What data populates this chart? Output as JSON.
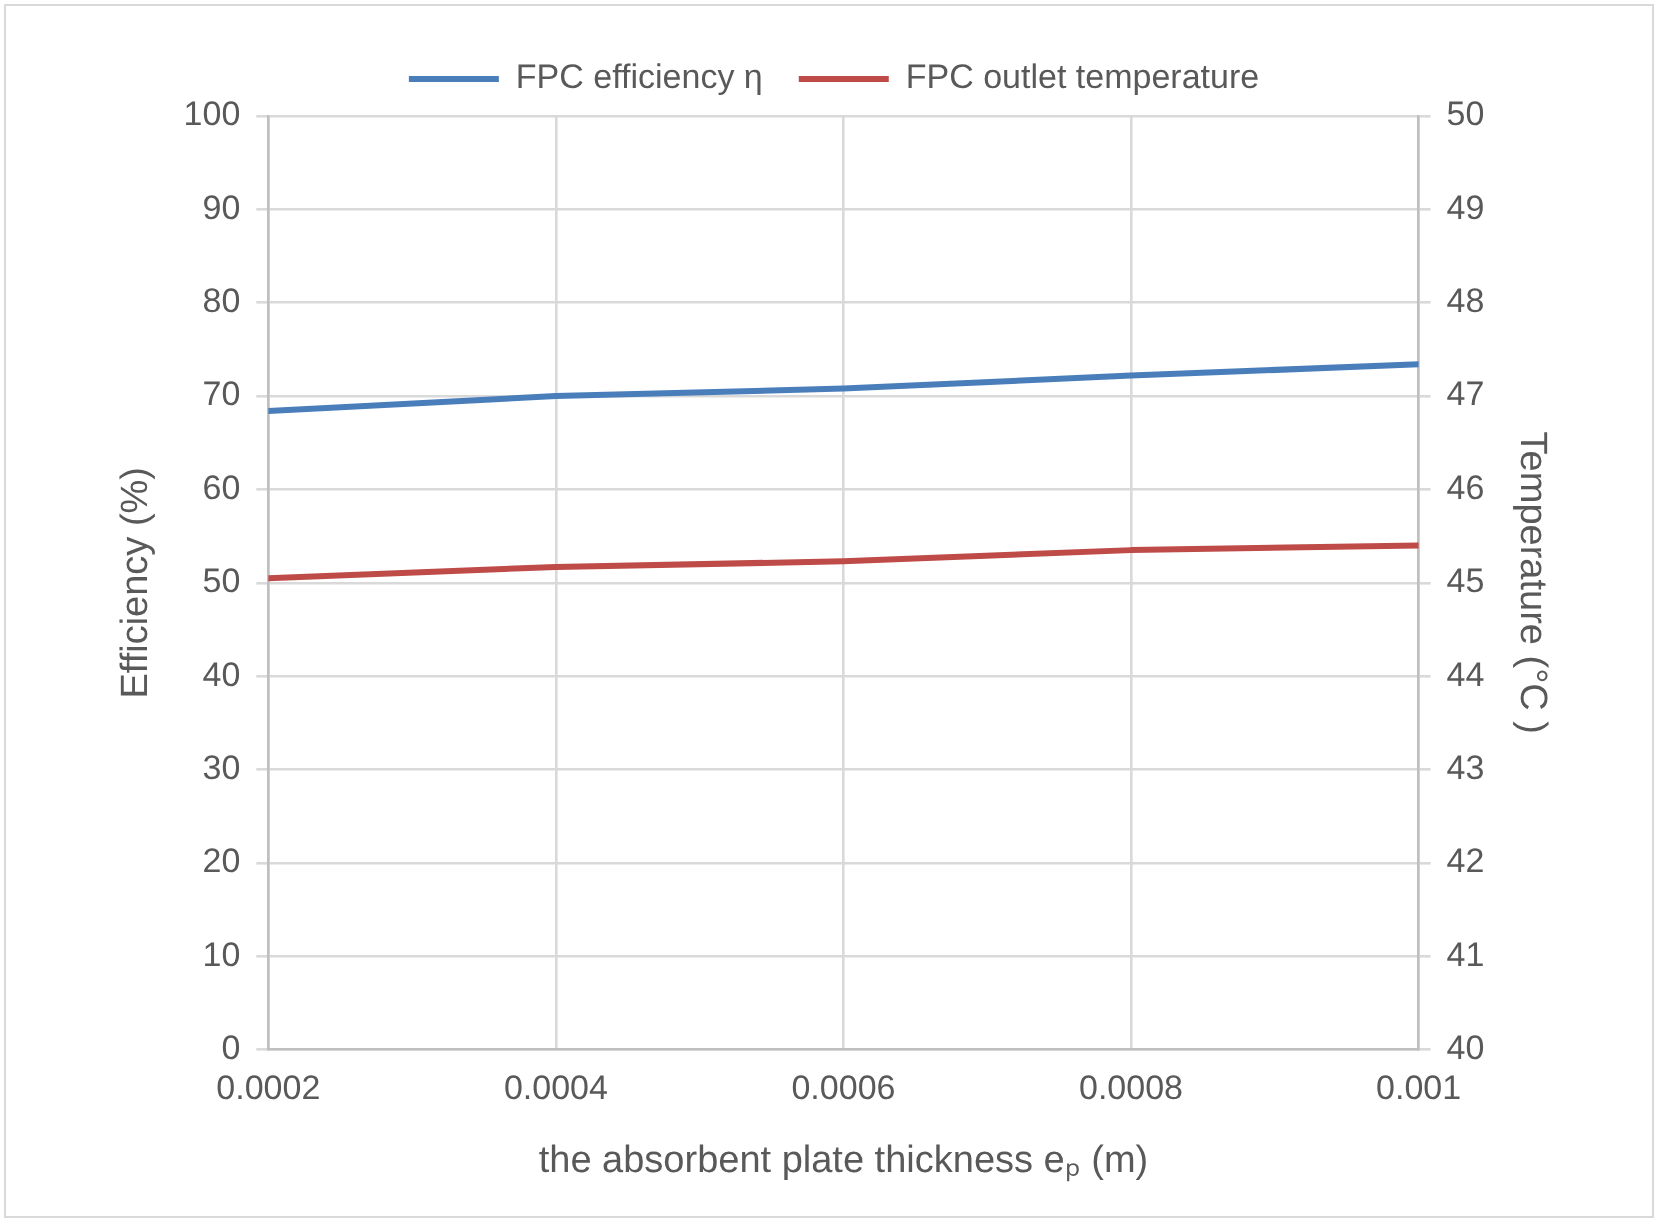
{
  "chart_data": {
    "type": "line",
    "xlabel": "the absorbent plate thickness eₚ (m)",
    "ylabel": "Efficiency (%)",
    "y2label": "Temperature (°C )",
    "x": [
      0.0002,
      0.0004,
      0.0006,
      0.0008,
      0.001
    ],
    "series": [
      {
        "name": "FPC efficiency η",
        "color": "#4a7ebb",
        "values": [
          68.4,
          70.0,
          70.8,
          72.2,
          73.4
        ]
      },
      {
        "name": "FPC outlet temperature",
        "color": "#be4b48",
        "axis": "y2",
        "values": [
          45.05,
          45.17,
          45.23,
          45.35,
          45.4
        ]
      }
    ],
    "xlim": [
      0.0002,
      0.001
    ],
    "xticks": [
      0.0002,
      0.0004,
      0.0006,
      0.0008,
      0.001
    ],
    "ylim": [
      0,
      100
    ],
    "yticks": [
      0,
      10,
      20,
      30,
      40,
      50,
      60,
      70,
      80,
      90,
      100
    ],
    "y2lim": [
      40,
      50
    ],
    "y2ticks": [
      40,
      41,
      42,
      43,
      44,
      45,
      46,
      47,
      48,
      49,
      50
    ],
    "grid": true,
    "legend": "top",
    "marker": "none",
    "line_style": "solid"
  }
}
